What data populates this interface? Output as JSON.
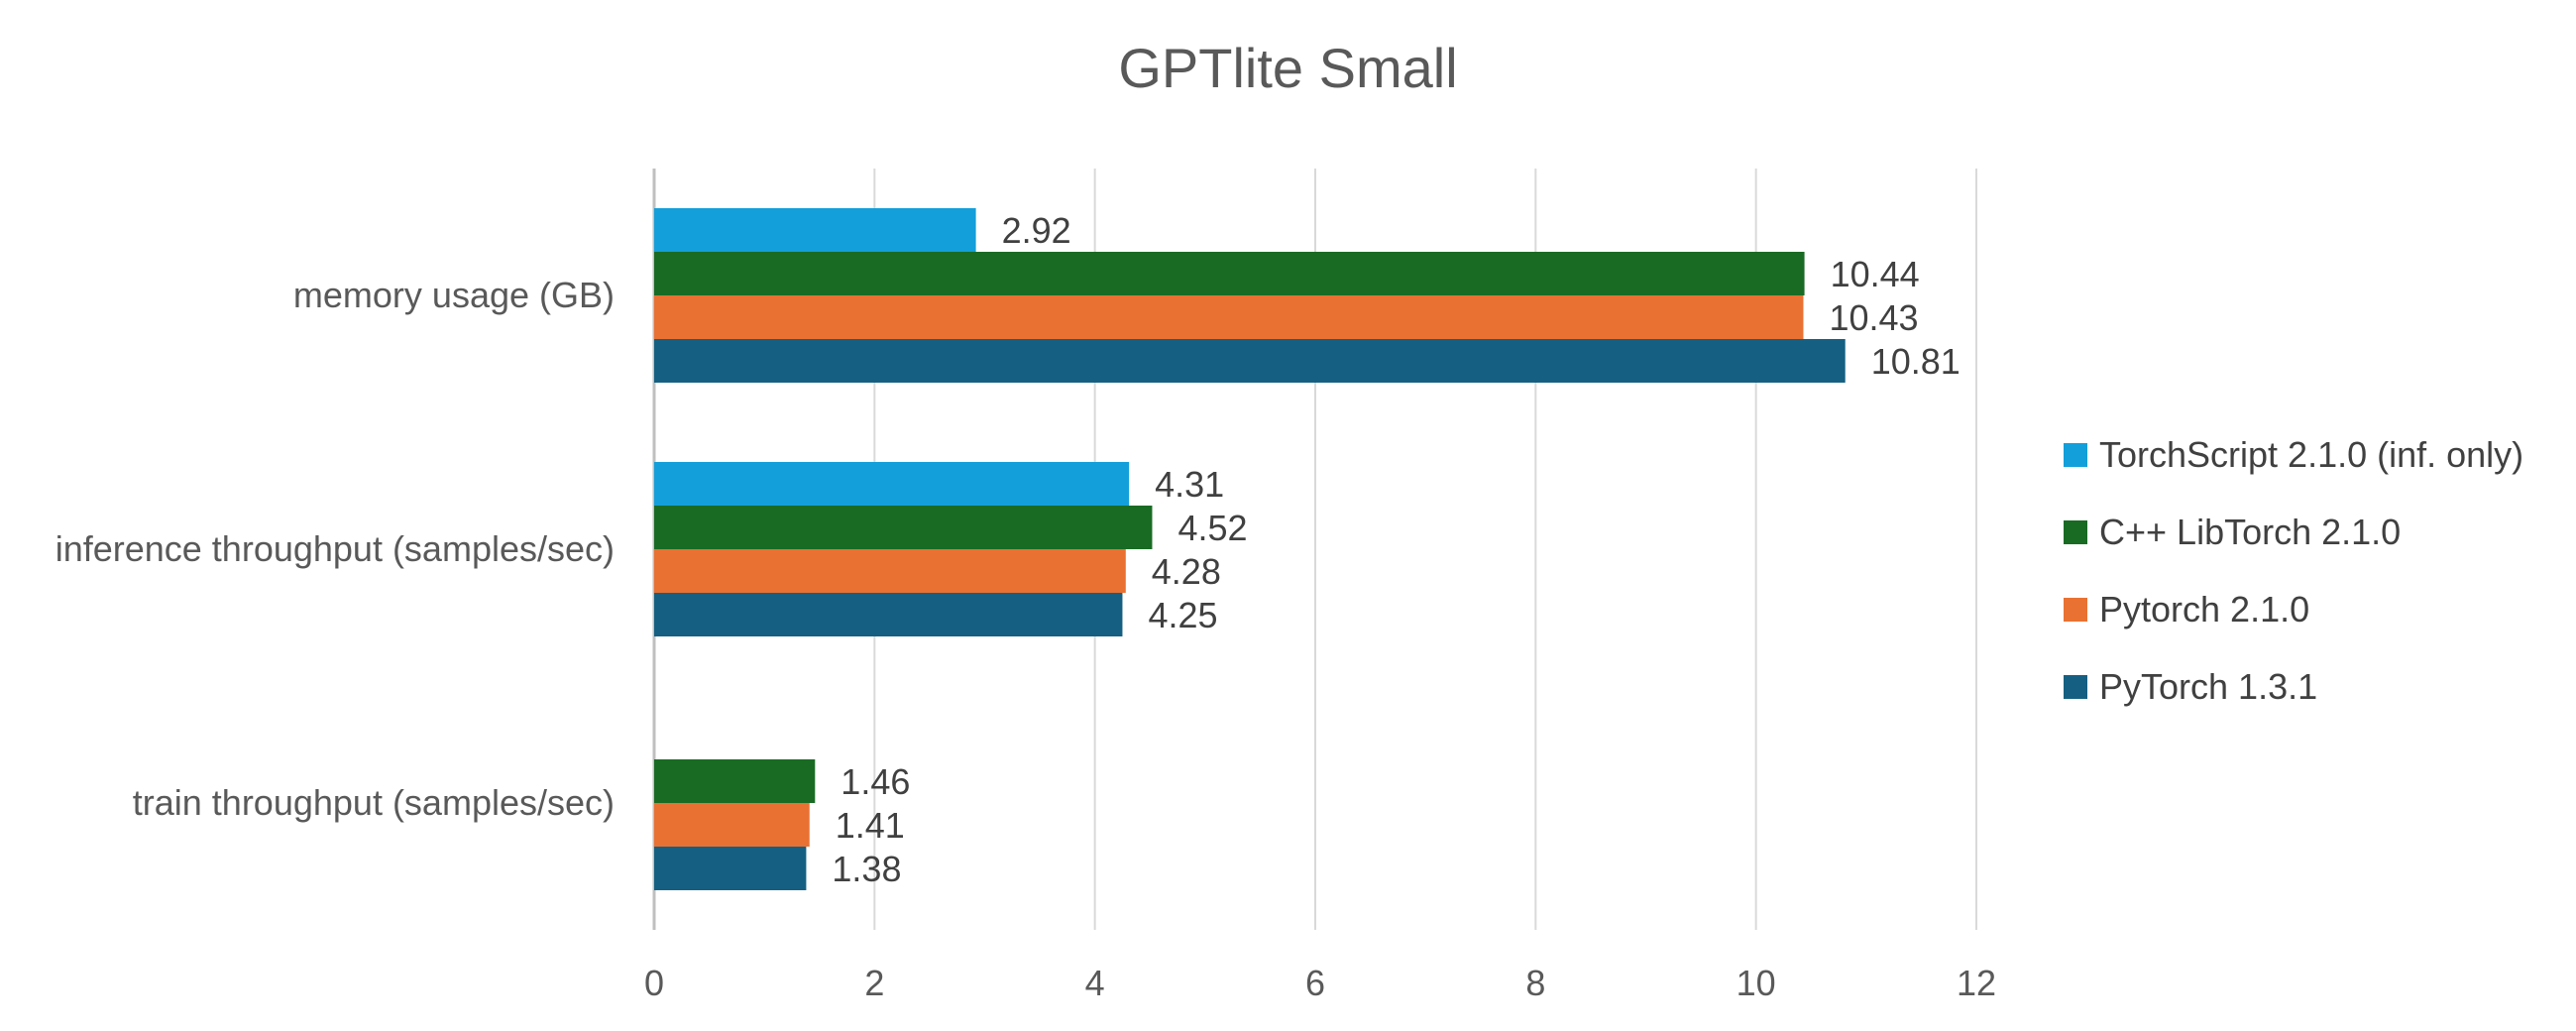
{
  "chart_data": {
    "type": "bar",
    "orientation": "horizontal",
    "title": "GPTlite Small",
    "categories": [
      "memory usage (GB)",
      "inference throughput (samples/sec)",
      "train throughput (samples/sec)"
    ],
    "series": [
      {
        "name": "TorchScript 2.1.0 (inf. only)",
        "color": "#139FDA",
        "values": [
          2.92,
          4.31,
          null
        ]
      },
      {
        "name": "C++ LibTorch 2.1.0",
        "color": "#196B24",
        "values": [
          10.44,
          4.52,
          1.46
        ]
      },
      {
        "name": "Pytorch 2.1.0",
        "color": "#E97132",
        "values": [
          10.43,
          4.28,
          1.41
        ]
      },
      {
        "name": "PyTorch 1.3.1",
        "color": "#156082",
        "values": [
          10.81,
          4.25,
          1.38
        ]
      }
    ],
    "xlim": [
      0,
      12
    ],
    "xticks": [
      "0",
      "2",
      "4",
      "6",
      "8",
      "10",
      "12"
    ],
    "grid": true,
    "legend_position": "right",
    "data_labels": true
  }
}
